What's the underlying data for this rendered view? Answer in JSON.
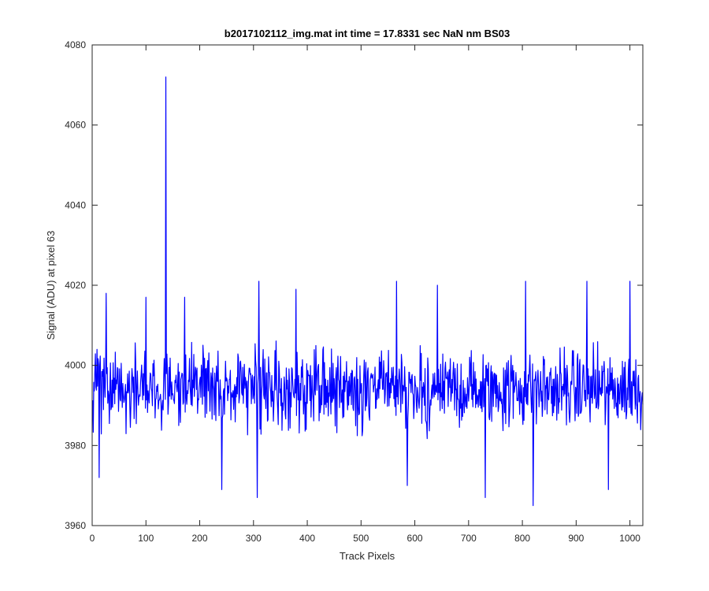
{
  "chart_data": {
    "type": "line",
    "title": "b2017102112_img.mat int time = 17.8331 sec  NaN nm BS03",
    "xlabel": "Track Pixels",
    "ylabel": "Signal (ADU) at pixel 63",
    "xlim": [
      0,
      1024
    ],
    "ylim": [
      3960,
      4080
    ],
    "xticks": [
      0,
      100,
      200,
      300,
      400,
      500,
      600,
      700,
      800,
      900,
      1000
    ],
    "yticks": [
      3960,
      3980,
      4000,
      4020,
      4040,
      4060,
      4080
    ],
    "grid": false,
    "line_color": "#0000ff",
    "series": [
      {
        "x_start": 1,
        "x_step": 1,
        "count": 1024,
        "baseline": 3994,
        "noise_amplitude": 9,
        "highlights": [
          {
            "x": 137,
            "y": 4072
          },
          {
            "x": 13,
            "y": 3972
          },
          {
            "x": 26,
            "y": 4018
          },
          {
            "x": 100,
            "y": 4017
          },
          {
            "x": 172,
            "y": 4017
          },
          {
            "x": 241,
            "y": 3969
          },
          {
            "x": 307,
            "y": 3967
          },
          {
            "x": 310,
            "y": 4021
          },
          {
            "x": 379,
            "y": 4019
          },
          {
            "x": 566,
            "y": 4021
          },
          {
            "x": 586,
            "y": 3970
          },
          {
            "x": 642,
            "y": 4020
          },
          {
            "x": 731,
            "y": 3967
          },
          {
            "x": 820,
            "y": 3965
          },
          {
            "x": 806,
            "y": 4021
          },
          {
            "x": 920,
            "y": 4021
          },
          {
            "x": 960,
            "y": 3969
          },
          {
            "x": 1000,
            "y": 4021
          }
        ]
      }
    ]
  }
}
